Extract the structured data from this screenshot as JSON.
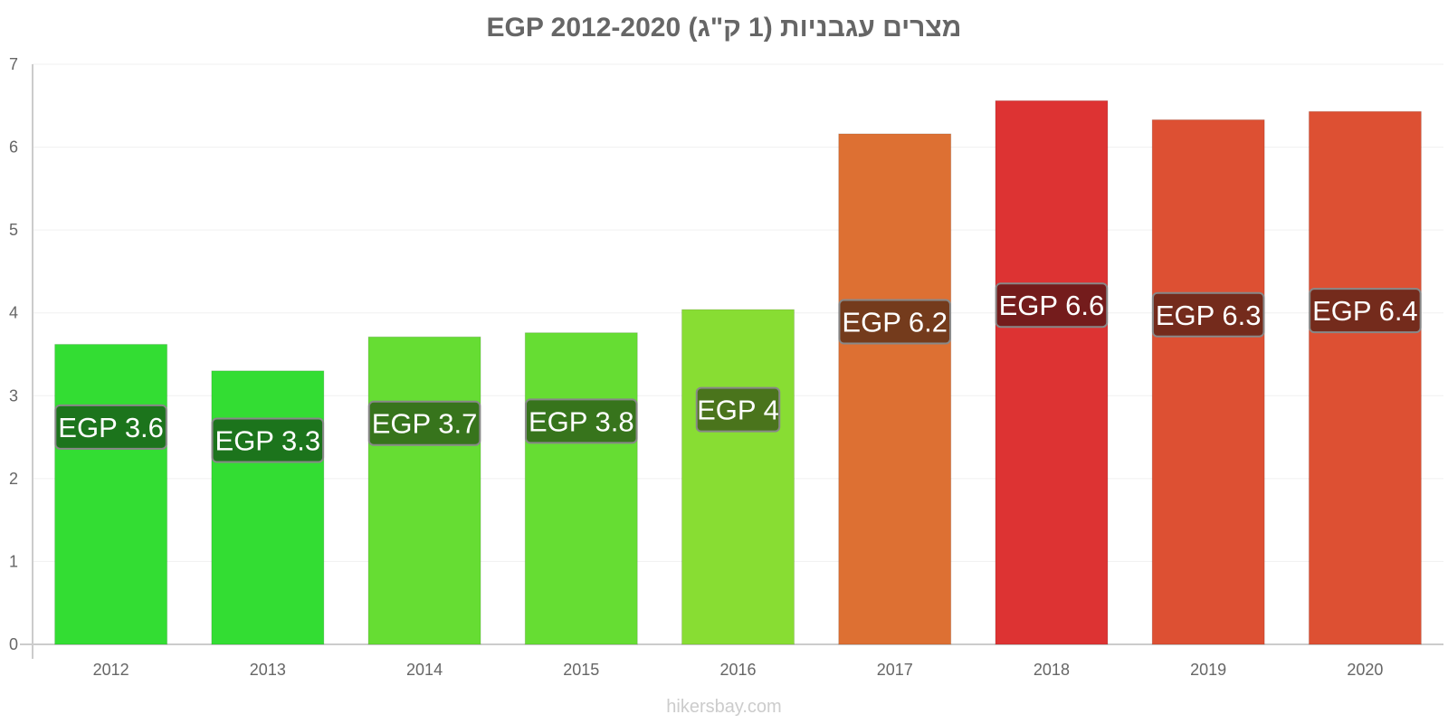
{
  "watermark": "hikersbay.com",
  "chart_data": {
    "type": "bar",
    "title": "מצרים עגבניות (1 ק\"ג) EGP 2012-2020",
    "xlabel": "",
    "ylabel": "",
    "categories": [
      "2012",
      "2013",
      "2014",
      "2015",
      "2016",
      "2017",
      "2018",
      "2019",
      "2020"
    ],
    "values": [
      3.62,
      3.3,
      3.71,
      3.76,
      4.04,
      6.16,
      6.56,
      6.33,
      6.43
    ],
    "data_labels": [
      "EGP 3.6",
      "EGP 3.3",
      "EGP 3.7",
      "EGP 3.8",
      "EGP 4",
      "EGP 6.2",
      "EGP 6.6",
      "EGP 6.3",
      "EGP 6.4"
    ],
    "bar_colors": [
      "#33dd33",
      "#33dd33",
      "#66dd33",
      "#66dd33",
      "#88dd33",
      "#dd7033",
      "#dd3333",
      "#dd5033",
      "#dd5033"
    ],
    "label_bg_colors": [
      "#1a6a1a",
      "#1a6a1a",
      "#336a1a",
      "#336a1a",
      "#446a1a",
      "#6a361a",
      "#6a1a1a",
      "#6a281a",
      "#6a281a"
    ],
    "yticks": [
      0,
      1,
      2,
      3,
      4,
      5,
      6,
      7
    ],
    "ylim": [
      0,
      7
    ],
    "grid": true,
    "legend": "none"
  }
}
